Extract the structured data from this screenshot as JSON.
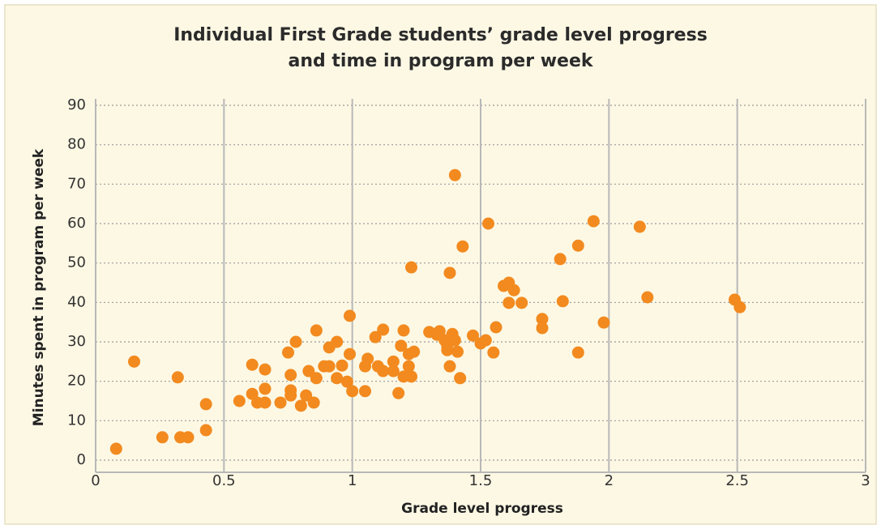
{
  "chart_data": {
    "type": "scatter",
    "title": "Individual First Grade students’ grade level progress and time in program per week",
    "xlabel": "Grade level progress",
    "ylabel": "Minutes spent in program per week",
    "color": "#f28a1f",
    "xlim": [
      0,
      3
    ],
    "ylim": [
      0,
      90
    ],
    "xticks": [
      0,
      0.5,
      1,
      1.5,
      2,
      2.5,
      3
    ],
    "yticks": [
      0,
      10,
      20,
      30,
      40,
      50,
      60,
      70,
      80,
      90
    ],
    "x": [
      0.08,
      0.15,
      0.32,
      0.26,
      0.33,
      0.36,
      0.43,
      0.43,
      0.56,
      0.61,
      0.61,
      0.63,
      0.66,
      0.66,
      0.66,
      0.72,
      0.75,
      0.76,
      0.76,
      0.76,
      0.78,
      0.8,
      0.82,
      0.83,
      0.85,
      0.86,
      0.86,
      0.89,
      0.91,
      0.91,
      0.94,
      0.94,
      0.96,
      0.98,
      0.99,
      0.99,
      1.0,
      1.05,
      1.05,
      1.06,
      1.09,
      1.1,
      1.12,
      1.12,
      1.16,
      1.16,
      1.18,
      1.19,
      1.2,
      1.2,
      1.22,
      1.22,
      1.23,
      1.23,
      1.24,
      1.3,
      1.33,
      1.34,
      1.36,
      1.37,
      1.37,
      1.38,
      1.38,
      1.39,
      1.4,
      1.4,
      1.41,
      1.42,
      1.43,
      1.47,
      1.5,
      1.52,
      1.53,
      1.55,
      1.56,
      1.59,
      1.61,
      1.61,
      1.63,
      1.66,
      1.74,
      1.74,
      1.81,
      1.82,
      1.88,
      1.88,
      1.94,
      1.98,
      2.12,
      2.15,
      2.49,
      2.51
    ],
    "values": [
      2.9,
      25,
      21,
      5.8,
      5.8,
      5.8,
      7.6,
      14.2,
      15,
      24.2,
      16.8,
      14.6,
      23,
      18.1,
      14.6,
      14.6,
      27.3,
      21.6,
      17.7,
      16.4,
      30,
      13.8,
      16.4,
      22.6,
      14.6,
      20.8,
      32.9,
      23.8,
      23.8,
      28.6,
      20.8,
      30,
      24,
      19.9,
      26.9,
      36.6,
      17.5,
      17.5,
      23.8,
      25.7,
      31.2,
      23.8,
      33.1,
      22.6,
      22.6,
      25,
      17,
      29,
      21.2,
      32.9,
      23.8,
      26.9,
      48.9,
      21.2,
      27.5,
      32.5,
      31.8,
      32.7,
      30.4,
      29,
      27.9,
      23.8,
      47.5,
      32,
      30.4,
      72.3,
      27.5,
      20.8,
      54.2,
      31.6,
      29.6,
      30.4,
      60,
      27.3,
      33.7,
      44.2,
      45,
      39.9,
      43.1,
      39.9,
      35.8,
      33.5,
      51,
      40.3,
      54.4,
      27.3,
      60.6,
      34.9,
      59.2,
      41.3,
      40.7,
      38.8
    ],
    "grid": true
  }
}
